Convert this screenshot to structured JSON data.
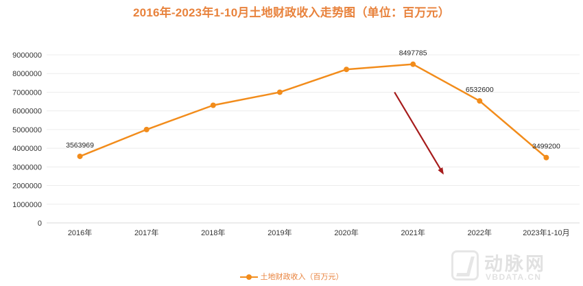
{
  "chart_data": {
    "type": "line",
    "title": "2016年-2023年1-10月土地财政收入走势图（单位：百万元）",
    "categories": [
      "2016年",
      "2017年",
      "2018年",
      "2019年",
      "2020年",
      "2021年",
      "2022年",
      "2023年1-10月"
    ],
    "series": [
      {
        "name": "土地财政收入（百万元）",
        "color": "#f28c1b",
        "values": [
          3563969,
          5000000,
          6300000,
          7000000,
          8220000,
          8497785,
          6532600,
          3499200
        ],
        "data_labels": [
          "3563969",
          "",
          "",
          "",
          "",
          "8497785",
          "6532600",
          "3499200"
        ]
      }
    ],
    "y_ticks": [
      "0",
      "1000000",
      "2000000",
      "3000000",
      "4000000",
      "5000000",
      "6000000",
      "7000000",
      "8000000",
      "9000000"
    ],
    "ylim": [
      0,
      9000000
    ],
    "grid": true,
    "legend_position": "bottom",
    "annotation": {
      "type": "arrow",
      "color": "#a61c1c",
      "from": {
        "x_index": 5.0,
        "value": 7000000
      },
      "to": {
        "x_index": 5.8,
        "value": 2650000
      }
    }
  },
  "watermark": {
    "brand_cn": "动脉网",
    "brand_en": "VBDATA.CN"
  }
}
